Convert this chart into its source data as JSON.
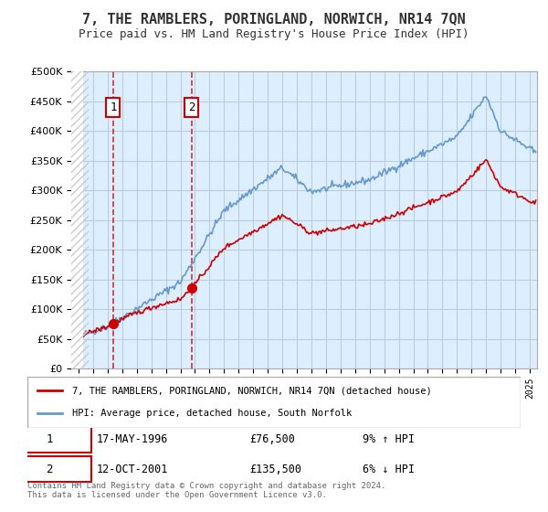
{
  "title": "7, THE RAMBLERS, PORINGLAND, NORWICH, NR14 7QN",
  "subtitle": "Price paid vs. HM Land Registry's House Price Index (HPI)",
  "legend_line1": "7, THE RAMBLERS, PORINGLAND, NORWICH, NR14 7QN (detached house)",
  "legend_line2": "HPI: Average price, detached house, South Norfolk",
  "annotation1_label": "1",
  "annotation1_date": "17-MAY-1996",
  "annotation1_price": "£76,500",
  "annotation1_hpi": "9% ↑ HPI",
  "annotation1_year": 1996.38,
  "annotation1_value": 76500,
  "annotation2_label": "2",
  "annotation2_date": "12-OCT-2001",
  "annotation2_price": "£135,500",
  "annotation2_hpi": "6% ↓ HPI",
  "annotation2_year": 2001.78,
  "annotation2_value": 135500,
  "footer": "Contains HM Land Registry data © Crown copyright and database right 2024.\nThis data is licensed under the Open Government Licence v3.0.",
  "ylim": [
    0,
    500000
  ],
  "yticks": [
    0,
    50000,
    100000,
    150000,
    200000,
    250000,
    300000,
    350000,
    400000,
    450000,
    500000
  ],
  "hatch_color": "#cccccc",
  "red_line_color": "#cc0000",
  "blue_line_color": "#6699cc",
  "bg_plot_color": "#ddeeff",
  "grid_color": "#bbccdd",
  "title_color": "#333333",
  "annotation_box_color": "#cc0000"
}
